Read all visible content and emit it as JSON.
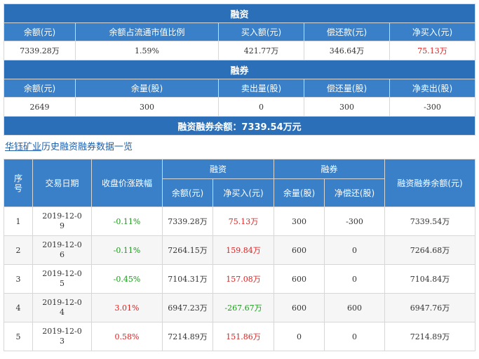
{
  "summary": {
    "margin_title": "融资",
    "margin_headers": [
      "余额(元)",
      "余额占流通市值比例",
      "买入额(元)",
      "偿还款(元)",
      "净买入(元)"
    ],
    "margin_values": [
      "7339.28万",
      "1.59%",
      "421.77万",
      "346.64万",
      "75.13万"
    ],
    "short_title": "融券",
    "short_headers": [
      "余额(元)",
      "余量(股)",
      "卖出量(股)",
      "偿还量(股)",
      "净卖出(股)"
    ],
    "short_values": [
      "2649",
      "300",
      "0",
      "300",
      "-300"
    ],
    "total_label": "融资融券余额：7339.54万元"
  },
  "history": {
    "link_text": "华钰矿业",
    "title_suffix": "历史融资融券数据一览",
    "col_index": "序号",
    "col_date": "交易日期",
    "col_change": "收盘价涨跌幅",
    "group_margin": "融资",
    "group_short": "融券",
    "col_margin_balance": "余额(元)",
    "col_margin_net": "净买入(元)",
    "col_short_qty": "余量(股)",
    "col_short_net": "净偿还(股)",
    "col_total": "融资融券余额(元)",
    "rows": [
      {
        "idx": "1",
        "date": "2019-12-09",
        "change": "-0.11%",
        "change_dir": "down",
        "balance": "7339.28万",
        "net": "75.13万",
        "net_dir": "up",
        "short_qty": "300",
        "short_net": "-300",
        "total": "7339.54万"
      },
      {
        "idx": "2",
        "date": "2019-12-06",
        "change": "-0.11%",
        "change_dir": "down",
        "balance": "7264.15万",
        "net": "159.84万",
        "net_dir": "up",
        "short_qty": "600",
        "short_net": "0",
        "total": "7264.68万"
      },
      {
        "idx": "3",
        "date": "2019-12-05",
        "change": "-0.45%",
        "change_dir": "down",
        "balance": "7104.31万",
        "net": "157.08万",
        "net_dir": "up",
        "short_qty": "600",
        "short_net": "0",
        "total": "7104.84万"
      },
      {
        "idx": "4",
        "date": "2019-12-04",
        "change": "3.01%",
        "change_dir": "up",
        "balance": "6947.23万",
        "net": "-267.67万",
        "net_dir": "down",
        "short_qty": "600",
        "short_net": "600",
        "total": "6947.76万"
      },
      {
        "idx": "5",
        "date": "2019-12-03",
        "change": "0.58%",
        "change_dir": "up",
        "balance": "7214.89万",
        "net": "151.86万",
        "net_dir": "up",
        "short_qty": "0",
        "short_net": "0",
        "total": "7214.89万"
      }
    ]
  },
  "colors": {
    "header_blue": "#3a80c9",
    "bar_blue": "#2a6fb8",
    "up_red": "#e02020",
    "down_green": "#1a9a1a"
  }
}
